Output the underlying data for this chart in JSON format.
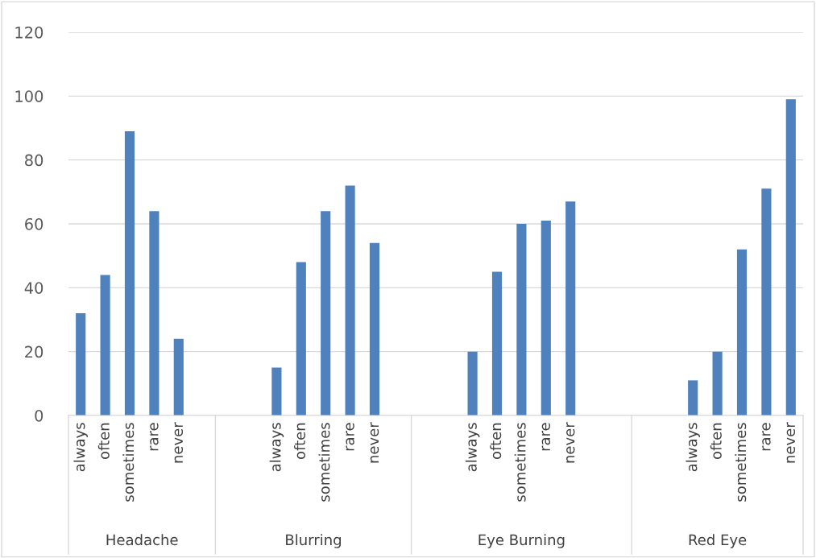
{
  "chart_data": {
    "type": "bar",
    "categories": [
      "always",
      "often",
      "sometimes",
      "rare",
      "never",
      null,
      null,
      null,
      "always",
      "often",
      "sometimes",
      "rare",
      "never",
      null,
      null,
      null,
      "always",
      "often",
      "sometimes",
      "rare",
      "never",
      null,
      null,
      null,
      null,
      "always",
      "often",
      "sometimes",
      "rare",
      "never"
    ],
    "values": [
      32,
      44,
      89,
      64,
      24,
      null,
      null,
      null,
      15,
      48,
      64,
      72,
      54,
      null,
      null,
      null,
      20,
      45,
      60,
      61,
      67,
      null,
      null,
      null,
      null,
      11,
      20,
      52,
      71,
      99
    ],
    "color": "#4f81bd",
    "annotations": [
      "Headache",
      "Blurring",
      "Eye Burning",
      "Red Eye"
    ],
    "ylim": [
      0,
      120
    ],
    "yticks": [
      0,
      20,
      40,
      60,
      80,
      100,
      120
    ],
    "grid": "y"
  }
}
